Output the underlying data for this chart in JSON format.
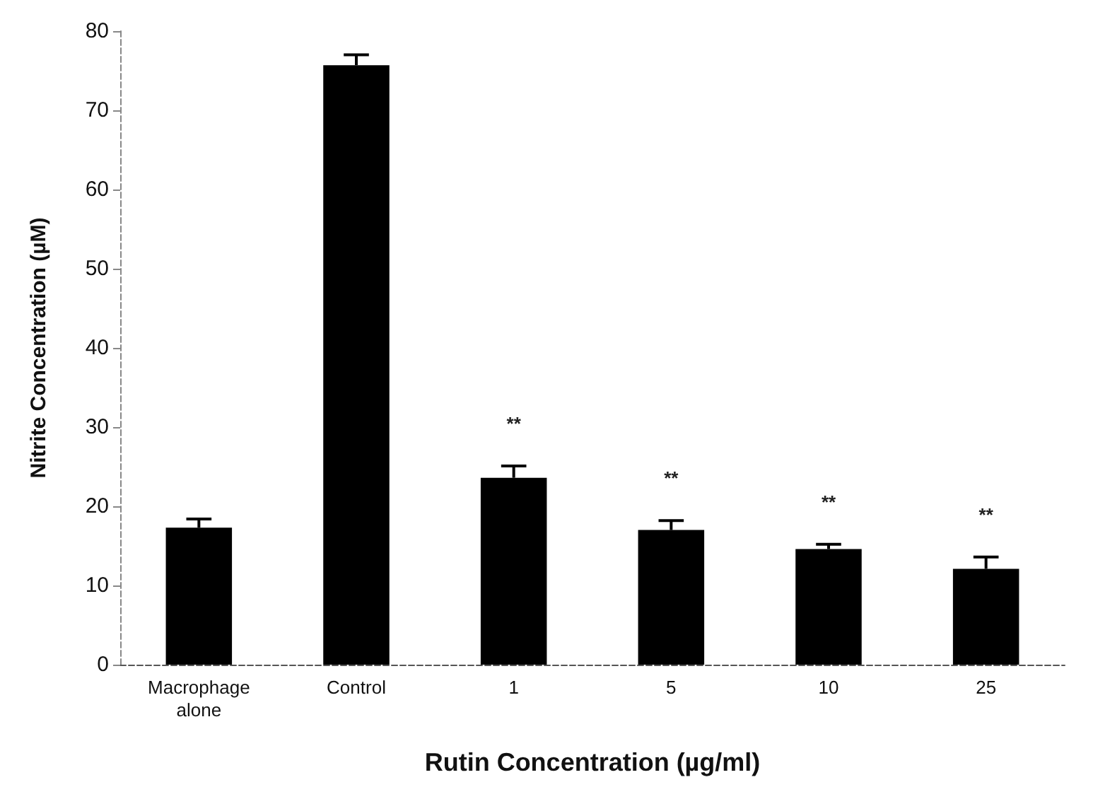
{
  "chart_data": {
    "type": "bar",
    "xlabel": "Rutin Concentration (µg/ml)",
    "ylabel": "Nitrite Concentration (µM)",
    "categories": [
      "Macrophage\nalone",
      "Control",
      "1",
      "5",
      "10",
      "25"
    ],
    "values": [
      17.3,
      75.7,
      23.6,
      17.0,
      14.6,
      12.1
    ],
    "errors": [
      1.1,
      1.3,
      1.5,
      1.2,
      0.6,
      1.5
    ],
    "color": "#000000",
    "ylim": [
      0,
      80
    ],
    "yticks": [
      0,
      10,
      20,
      30,
      40,
      50,
      60,
      70,
      80
    ],
    "grid": false,
    "value_labels": [
      null,
      null,
      "**",
      "**",
      "**",
      "**"
    ]
  }
}
